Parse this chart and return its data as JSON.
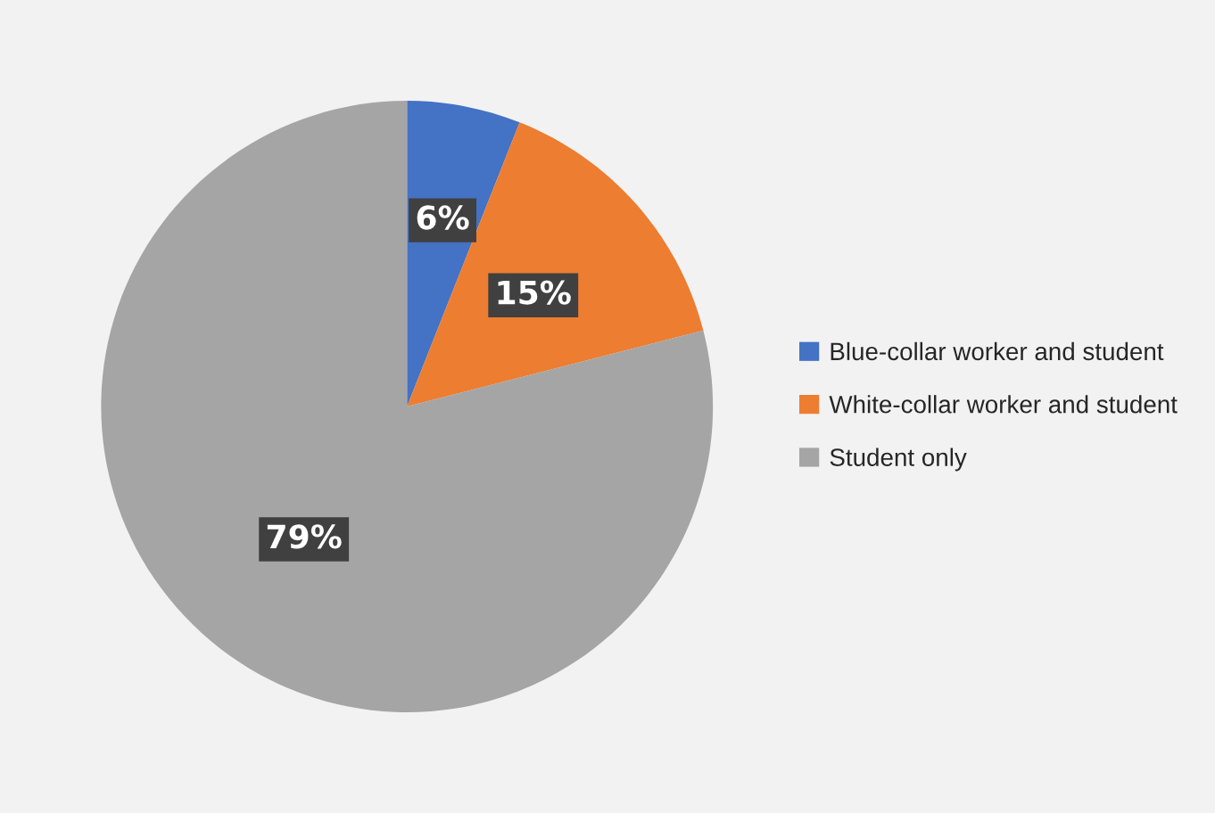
{
  "chart_data": {
    "type": "pie",
    "categories": [
      "Blue-collar worker and student",
      "White-collar worker and student",
      "Student only"
    ],
    "values": [
      6,
      15,
      79
    ],
    "colors": [
      "#4472c4",
      "#ed7d31",
      "#a5a5a5"
    ],
    "value_labels": [
      "6%",
      "15%",
      "79%"
    ],
    "legend": "right"
  }
}
